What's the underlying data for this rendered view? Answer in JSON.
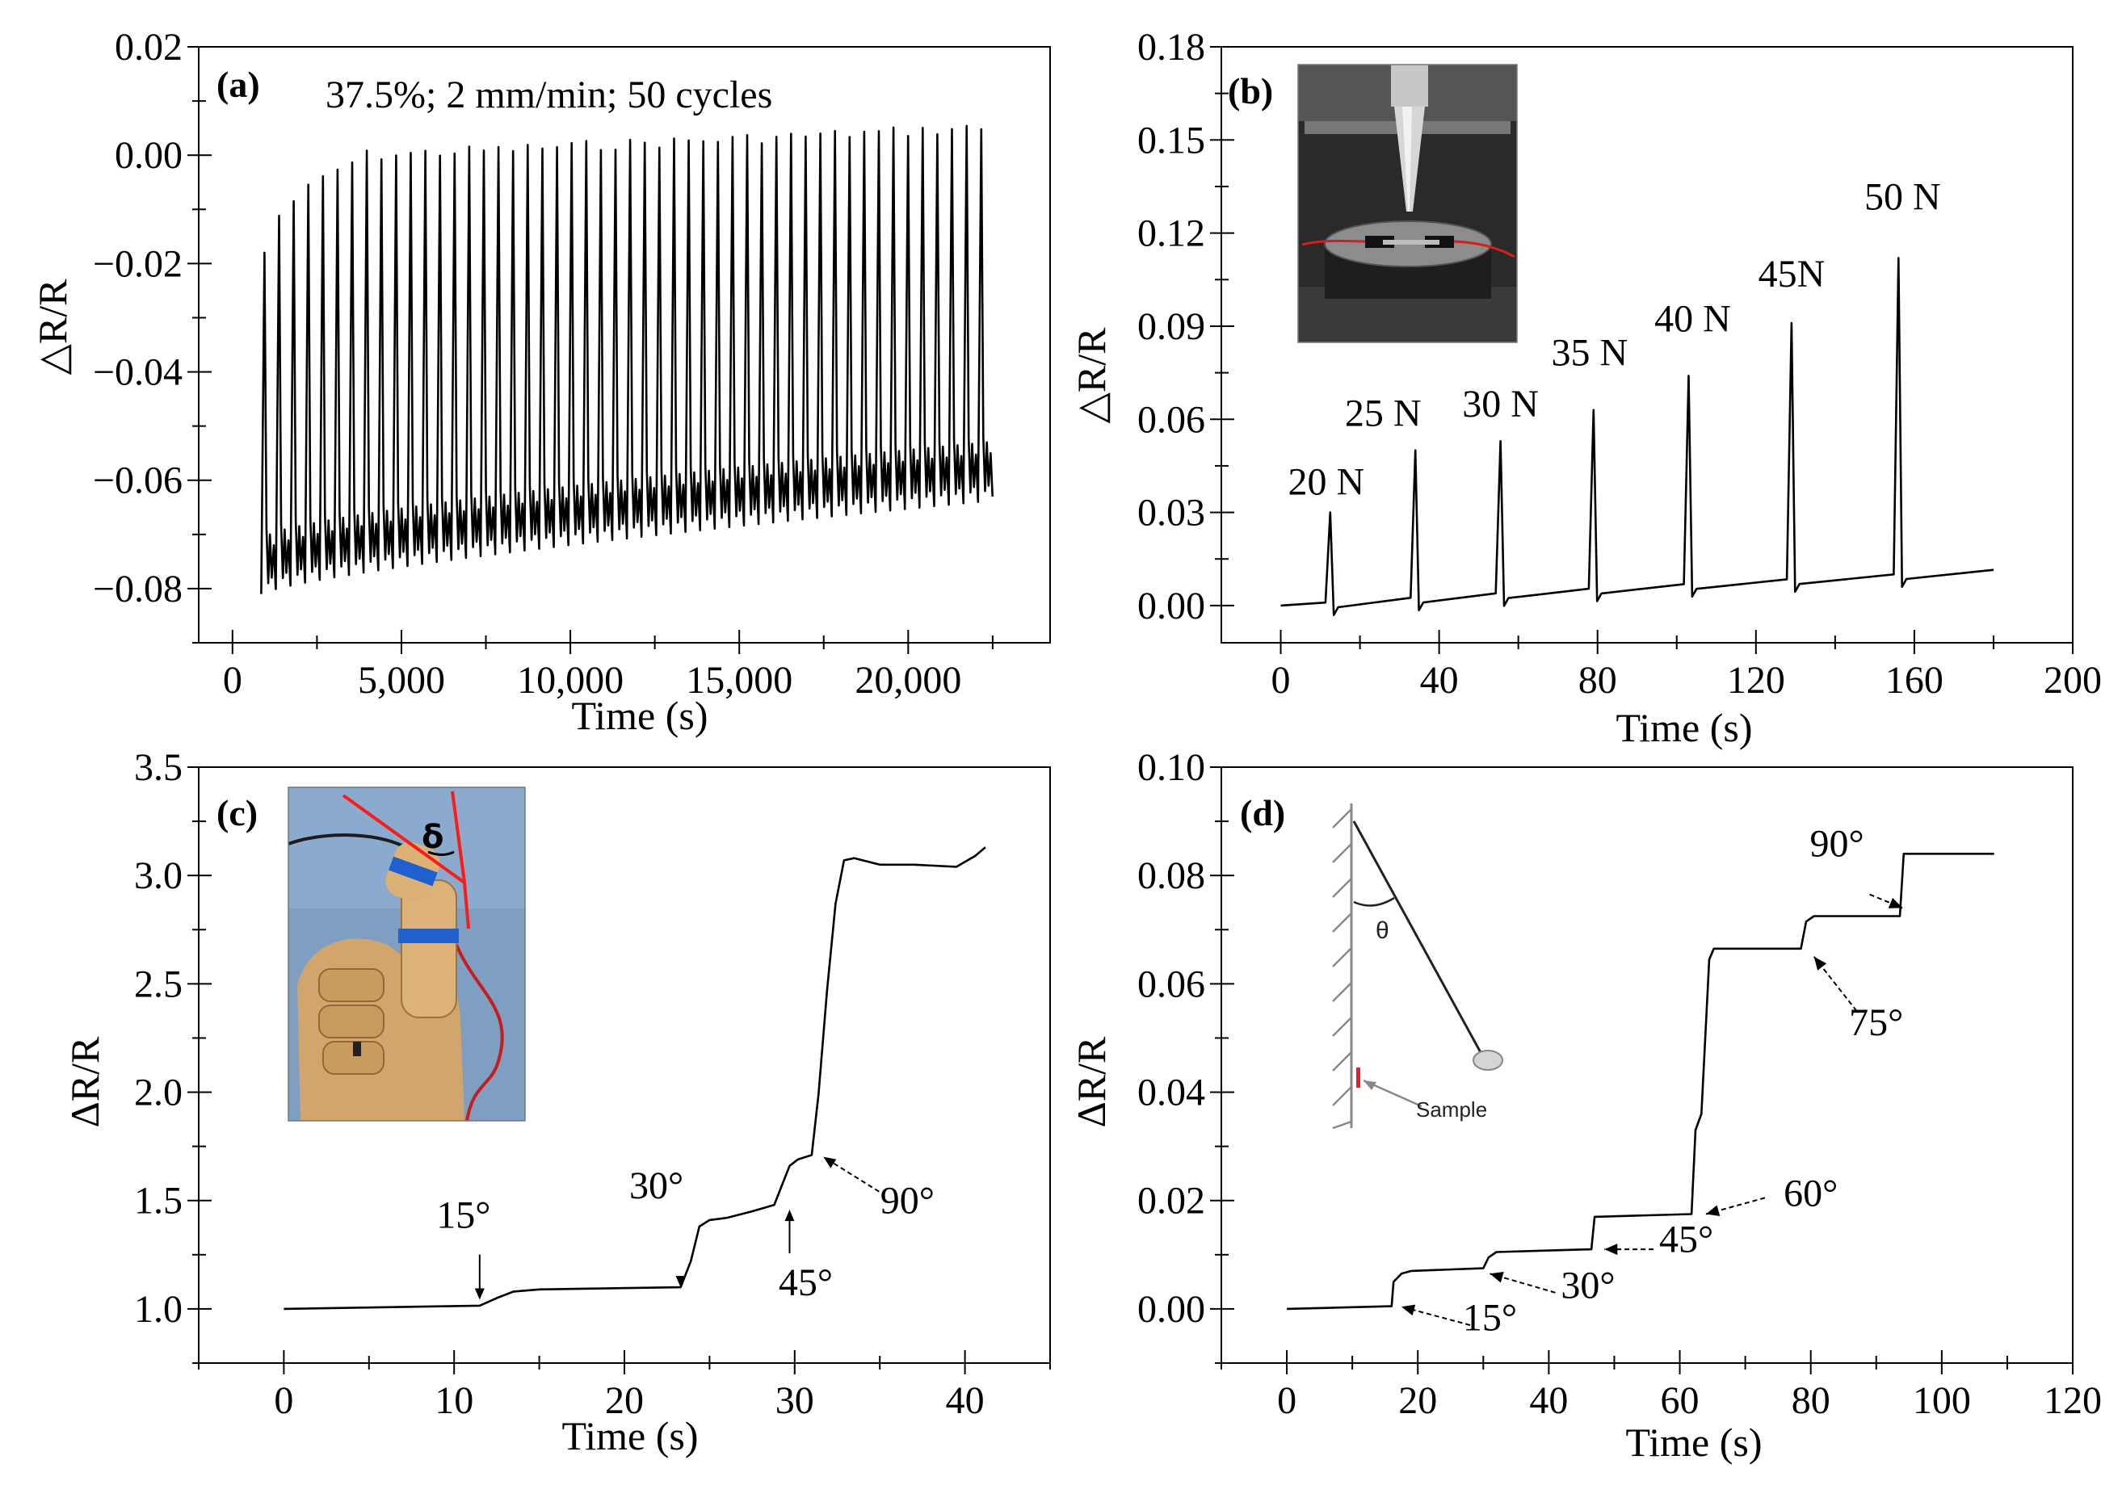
{
  "chart_data": [
    {
      "panel": "(a)",
      "type": "line",
      "title": "37.5%;  2 mm/min;  50 cycles",
      "xlabel": "Time (s)",
      "ylabel": "△R/R",
      "xlim": [
        -1000,
        24200
      ],
      "ylim": [
        -0.09,
        0.02
      ],
      "xticks": [
        0,
        5000,
        10000,
        15000,
        20000
      ],
      "xtick_labels": [
        "0",
        "5,000",
        "10,000",
        "15,000",
        "20,000"
      ],
      "yticks": [
        0.02,
        0.0,
        -0.02,
        -0.04,
        -0.06,
        -0.08
      ],
      "ytick_labels": [
        "0.02",
        "0.00",
        "−0.02",
        "−0.04",
        "−0.06",
        "−0.08"
      ],
      "cycles": 50,
      "t_start": 850,
      "t_end": 22500,
      "peak_start": -0.018,
      "peak_plateau": -0.0,
      "peak_end": 0.005,
      "valley_start": -0.081,
      "valley_end": -0.064,
      "color": "#000000",
      "grid": false,
      "legend": "none"
    },
    {
      "panel": "(b)",
      "type": "line",
      "xlabel": "Time (s)",
      "ylabel": "△R/R",
      "xlim": [
        -15,
        200
      ],
      "ylim": [
        -0.012,
        0.18
      ],
      "xticks": [
        0,
        40,
        80,
        120,
        160,
        200
      ],
      "xtick_labels": [
        "0",
        "40",
        "80",
        "120",
        "160",
        "200"
      ],
      "yticks": [
        0.0,
        0.03,
        0.06,
        0.09,
        0.12,
        0.15,
        0.18
      ],
      "ytick_labels": [
        "0.00",
        "0.03",
        "0.06",
        "0.09",
        "0.12",
        "0.15",
        "0.18"
      ],
      "peaks": [
        {
          "t": 12.5,
          "value": 0.03,
          "label": "20 N"
        },
        {
          "t": 34,
          "value": 0.05,
          "label": "25 N"
        },
        {
          "t": 55.5,
          "value": 0.053,
          "label": "30 N"
        },
        {
          "t": 79,
          "value": 0.063,
          "label": "35 N"
        },
        {
          "t": 103,
          "value": 0.074,
          "label": "40 N"
        },
        {
          "t": 129,
          "value": 0.091,
          "label": "45N"
        },
        {
          "t": 156,
          "value": 0.112,
          "label": "50 N"
        }
      ],
      "baseline": {
        "t_start": 0,
        "t_end": 180,
        "v_start": 0.0,
        "v_end": 0.0115
      },
      "inset": "photo of compression test rig with sample and red wires",
      "color": "#000000",
      "grid": false,
      "legend": "none"
    },
    {
      "panel": "(c)",
      "type": "line",
      "xlabel": "Time (s)",
      "ylabel": "ΔR/R",
      "xlim": [
        -5,
        45
      ],
      "ylim": [
        0.75,
        3.5
      ],
      "xticks": [
        0,
        10,
        20,
        30,
        40
      ],
      "xtick_labels": [
        "0",
        "10",
        "20",
        "30",
        "40"
      ],
      "yticks": [
        1.0,
        1.5,
        2.0,
        2.5,
        3.0,
        3.5
      ],
      "ytick_labels": [
        "1.0",
        "1.5",
        "2.0",
        "2.5",
        "3.0",
        "3.5"
      ],
      "x": [
        0,
        11.5,
        12.5,
        13.5,
        15,
        23.3,
        23.9,
        24.4,
        25.0,
        26,
        27.5,
        28.8,
        29.2,
        29.7,
        30.2,
        31,
        31.4,
        31.9,
        32.4,
        32.9,
        33.5,
        35,
        37,
        39.5,
        40.6,
        41.2
      ],
      "y": [
        1.0,
        1.015,
        1.05,
        1.08,
        1.09,
        1.1,
        1.22,
        1.38,
        1.41,
        1.42,
        1.45,
        1.48,
        1.56,
        1.66,
        1.69,
        1.71,
        1.99,
        2.47,
        2.87,
        3.07,
        3.08,
        3.05,
        3.05,
        3.04,
        3.09,
        3.13
      ],
      "annotations": [
        {
          "label": "15°",
          "t": 11.5,
          "value": 1.02
        },
        {
          "label": "30°",
          "t": 23.3,
          "value": 1.1
        },
        {
          "label": "45°",
          "t": 29.7,
          "value": 1.48
        },
        {
          "label": "90°",
          "t": 31.4,
          "value": 1.72
        }
      ],
      "inset_label": "δ",
      "color": "#000000",
      "grid": false,
      "legend": "none"
    },
    {
      "panel": "(d)",
      "type": "line",
      "xlabel": "Time (s)",
      "ylabel": "ΔR/R",
      "xlim": [
        -10,
        120
      ],
      "ylim": [
        -0.01,
        0.1
      ],
      "xticks": [
        0,
        20,
        40,
        60,
        80,
        100,
        120
      ],
      "xtick_labels": [
        "0",
        "20",
        "40",
        "60",
        "80",
        "100",
        "120"
      ],
      "yticks": [
        0.0,
        0.02,
        0.04,
        0.06,
        0.08,
        0.1
      ],
      "ytick_labels": [
        "0.00",
        "0.02",
        "0.04",
        "0.06",
        "0.08",
        "0.10"
      ],
      "x": [
        0,
        16,
        16.3,
        17.5,
        19,
        30,
        30.8,
        32,
        46.5,
        47,
        61.8,
        62.4,
        63.3,
        64.5,
        65.2,
        78.5,
        79.3,
        80.5,
        93.6,
        94.2,
        108
      ],
      "y": [
        0.0,
        0.0005,
        0.005,
        0.0065,
        0.007,
        0.0075,
        0.0095,
        0.0105,
        0.011,
        0.017,
        0.0175,
        0.033,
        0.036,
        0.0645,
        0.0665,
        0.0665,
        0.0715,
        0.0725,
        0.0725,
        0.084,
        0.084
      ],
      "annotations": [
        {
          "label": "15°",
          "t": 16.3
        },
        {
          "label": "30°",
          "t": 31
        },
        {
          "label": "45°",
          "t": 47
        },
        {
          "label": "60°",
          "t": 63
        },
        {
          "label": "75°",
          "t": 80
        },
        {
          "label": "90°",
          "t": 94
        }
      ],
      "inset_labels": {
        "angle": "θ",
        "sample": "Sample"
      },
      "color": "#000000",
      "grid": false,
      "legend": "none"
    }
  ]
}
